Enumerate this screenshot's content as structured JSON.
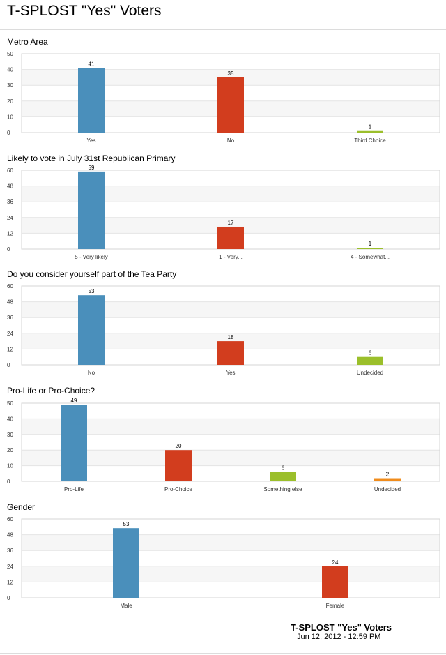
{
  "page": {
    "title": "T-SPLOST \"Yes\" Voters",
    "footer_title": "T-SPLOST \"Yes\" Voters",
    "footer_date": "Jun 12, 2012 - 12:59 PM"
  },
  "colors": [
    "#4a8fbb",
    "#d23d1e",
    "#9bbf2b",
    "#f08c1c"
  ],
  "chart_data": [
    {
      "type": "bar",
      "title": "Metro Area",
      "categories": [
        "Yes",
        "No",
        "Third Choice"
      ],
      "values": [
        41,
        35,
        1
      ],
      "ylim": [
        0,
        50
      ],
      "yticks": [
        0,
        10,
        20,
        30,
        40,
        50
      ],
      "grid": true
    },
    {
      "type": "bar",
      "title": "Likely to vote in July 31st Republican Primary",
      "categories": [
        "5 - Very likely",
        "1 - Very...",
        "4 - Somewhat..."
      ],
      "values": [
        59,
        17,
        1
      ],
      "ylim": [
        0,
        60
      ],
      "yticks": [
        0,
        12,
        24,
        36,
        48,
        60
      ],
      "grid": true
    },
    {
      "type": "bar",
      "title": "Do you consider yourself part of the Tea Party",
      "categories": [
        "No",
        "Yes",
        "Undecided"
      ],
      "values": [
        53,
        18,
        6
      ],
      "ylim": [
        0,
        60
      ],
      "yticks": [
        0,
        12,
        24,
        36,
        48,
        60
      ],
      "grid": true
    },
    {
      "type": "bar",
      "title": "Pro-Life or Pro-Choice?",
      "categories": [
        "Pro-Life",
        "Pro-Choice",
        "Something else",
        "Undecided"
      ],
      "values": [
        49,
        20,
        6,
        2
      ],
      "ylim": [
        0,
        50
      ],
      "yticks": [
        0,
        10,
        20,
        30,
        40,
        50
      ],
      "grid": true
    },
    {
      "type": "bar",
      "title": "Gender",
      "categories": [
        "Male",
        "Female"
      ],
      "values": [
        53,
        24
      ],
      "ylim": [
        0,
        60
      ],
      "yticks": [
        0,
        12,
        24,
        36,
        48,
        60
      ],
      "grid": true
    }
  ]
}
